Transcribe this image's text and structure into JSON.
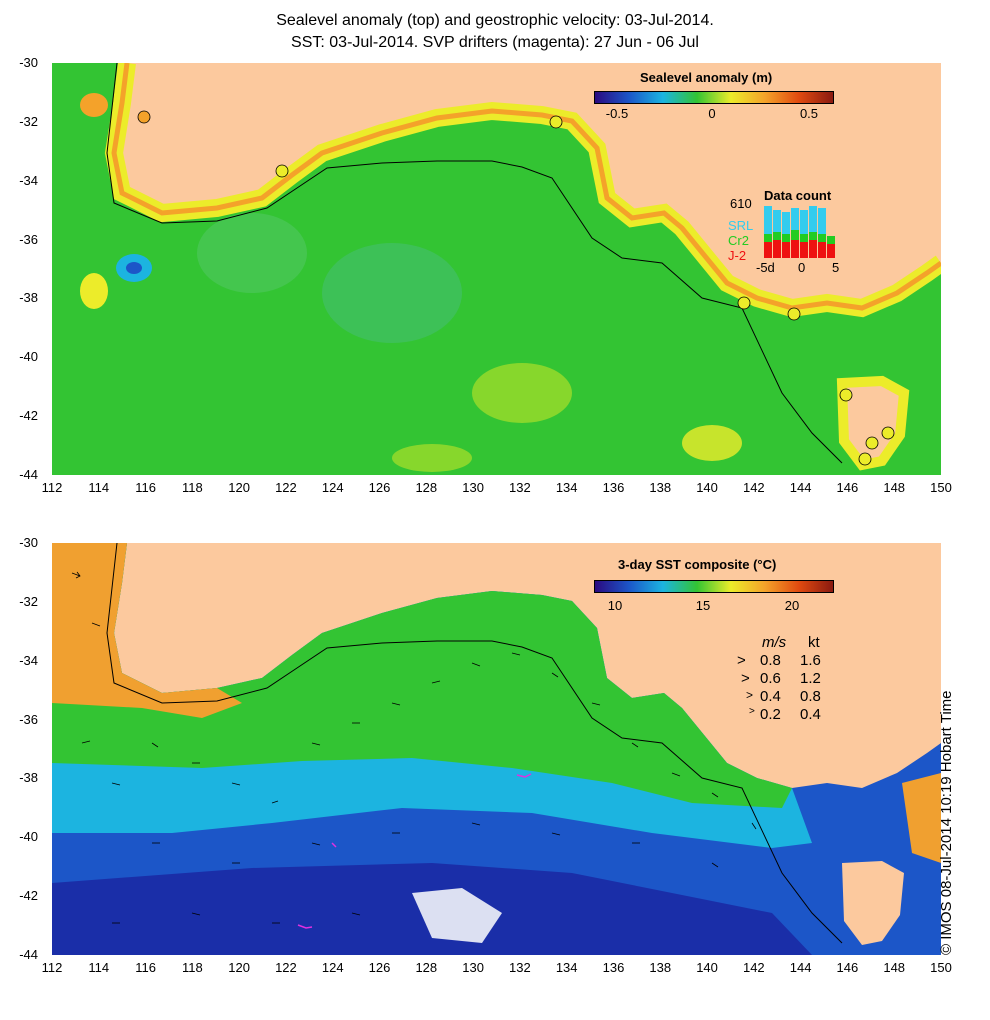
{
  "title_line1": "Sealevel anomaly (top) and geostrophic velocity: 03-Jul-2014.",
  "title_line2": "SST: 03-Jul-2014. SVP drifters (magenta): 27 Jun - 06 Jul",
  "axes": {
    "lon_ticks": [
      "112",
      "114",
      "116",
      "118",
      "120",
      "122",
      "124",
      "126",
      "128",
      "130",
      "132",
      "134",
      "136",
      "138",
      "140",
      "142",
      "144",
      "146",
      "148",
      "150"
    ],
    "lat_ticks": [
      "-30",
      "-32",
      "-34",
      "-36",
      "-38",
      "-40",
      "-42",
      "-44"
    ],
    "lon_range": [
      112,
      150
    ],
    "lat_range": [
      -30,
      -44
    ]
  },
  "top_panel": {
    "colorbar_title": "Sealevel anomaly (m)",
    "colorbar_ticks": [
      "-0.5",
      "0",
      "0.5"
    ],
    "data_count": {
      "title": "Data count",
      "max_label": "610",
      "legend": [
        {
          "label": "SRL",
          "color": "#33ccee"
        },
        {
          "label": "Cr2",
          "color": "#22cc22"
        },
        {
          "label": "J-2",
          "color": "#ee1111"
        }
      ],
      "x_ticks": [
        "-5d",
        "0",
        "5"
      ]
    }
  },
  "bottom_panel": {
    "colorbar_title": "3-day SST composite (°C)",
    "colorbar_ticks": [
      "10",
      "15",
      "20"
    ],
    "velocity_key": {
      "header_ms": "m/s",
      "header_kt": "kt",
      "rows": [
        {
          "ms": "0.8",
          "kt": "1.6"
        },
        {
          "ms": "0.6",
          "kt": "1.2"
        },
        {
          "ms": "0.4",
          "kt": "0.8"
        },
        {
          "ms": "0.2",
          "kt": "0.4"
        }
      ]
    }
  },
  "colors": {
    "land": "#fcc99e",
    "ocean_green": "#33c433",
    "ocean_cyan": "#1cb4e0",
    "ocean_blue": "#1c56c8",
    "sst_warm": "#f0a030",
    "drifter": "#e030e0"
  },
  "copyright": "© IMOS 08-Jul-2014 10:19 Hobart Time"
}
